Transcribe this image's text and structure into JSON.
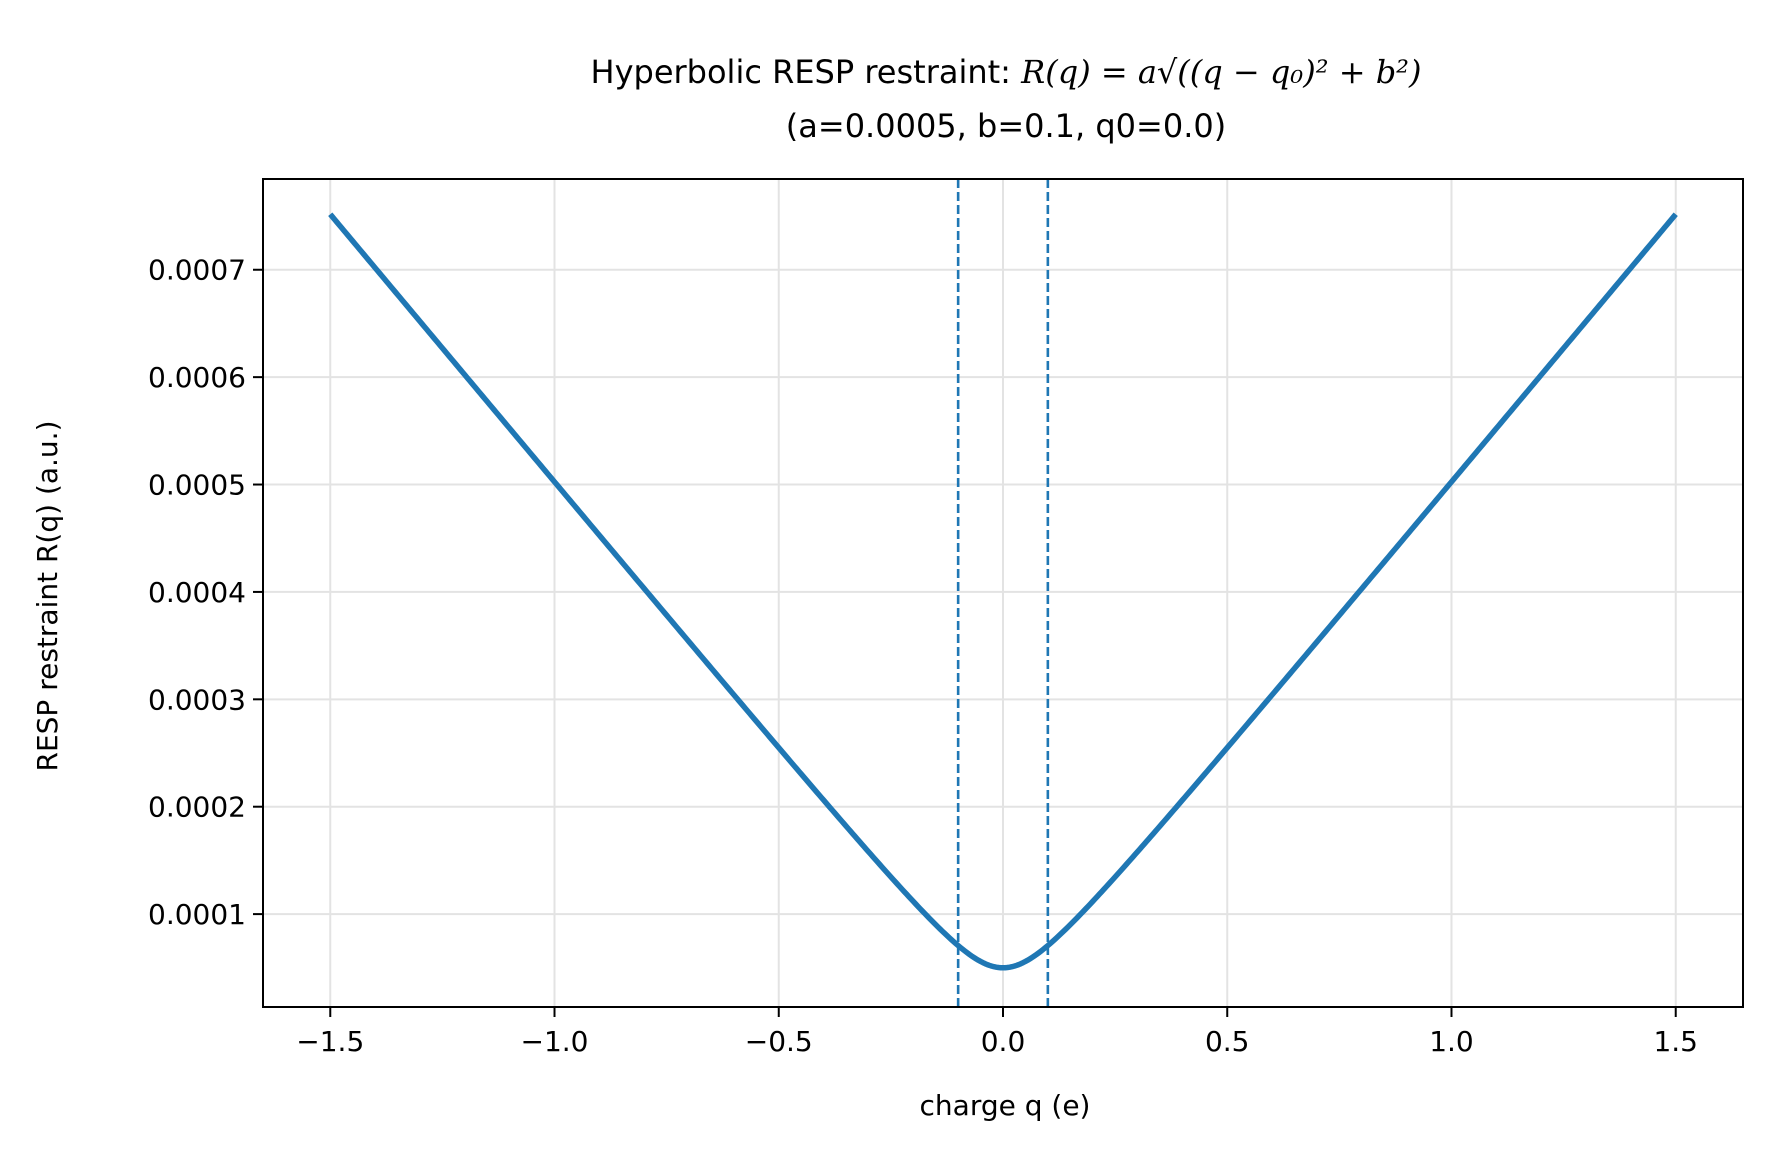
{
  "chart_data": {
    "type": "line",
    "title": {
      "line1_text": "Hyperbolic RESP restraint: ",
      "line1_formula": "R(q) = a√((q − q₀)² + b²)",
      "line2": "(a=0.0005, b=0.1, q0=0.0)"
    },
    "xlabel": "charge q (e)",
    "ylabel": "RESP restraint R(q) (a.u.)",
    "xlim": [
      -1.65,
      1.65
    ],
    "ylim": [
      1.35e-05,
      0.0007845
    ],
    "xticks": [
      -1.5,
      -1.0,
      -0.5,
      0.0,
      0.5,
      1.0,
      1.5
    ],
    "xtick_labels": [
      "−1.5",
      "−1.0",
      "−0.5",
      "0.0",
      "0.5",
      "1.0",
      "1.5"
    ],
    "yticks": [
      0.0001,
      0.0002,
      0.0003,
      0.0004,
      0.0005,
      0.0006,
      0.0007
    ],
    "ytick_labels": [
      "0.0001",
      "0.0002",
      "0.0003",
      "0.0004",
      "0.0005",
      "0.0006",
      "0.0007"
    ],
    "grid": true,
    "params": {
      "a": 0.0005,
      "b": 0.1,
      "q0": 0.0
    },
    "series": [
      {
        "x": [
          -1.5,
          -1.25,
          -1.0,
          -0.75,
          -0.5,
          -0.4,
          -0.3,
          -0.2,
          -0.15,
          -0.1,
          -0.05,
          0.0,
          0.05,
          0.1,
          0.15,
          0.2,
          0.3,
          0.4,
          0.5,
          0.75,
          1.0,
          1.25,
          1.5
        ],
        "y": [
          0.0007517,
          0.000627,
          0.0005025,
          0.0003783,
          0.000255,
          0.0002062,
          0.0001581,
          0.0001118,
          9.01e-05,
          7.07e-05,
          5.59e-05,
          5e-05,
          5.59e-05,
          7.07e-05,
          9.01e-05,
          0.0001118,
          0.0001581,
          0.0002062,
          0.000255,
          0.0003783,
          0.0005025,
          0.000627,
          0.0007517
        ],
        "color": "#1f77b4",
        "style": "solid"
      }
    ],
    "vlines": [
      {
        "x": -0.1,
        "color": "#1f77b4",
        "style": "dashed"
      },
      {
        "x": 0.1,
        "color": "#1f77b4",
        "style": "dashed"
      }
    ]
  }
}
